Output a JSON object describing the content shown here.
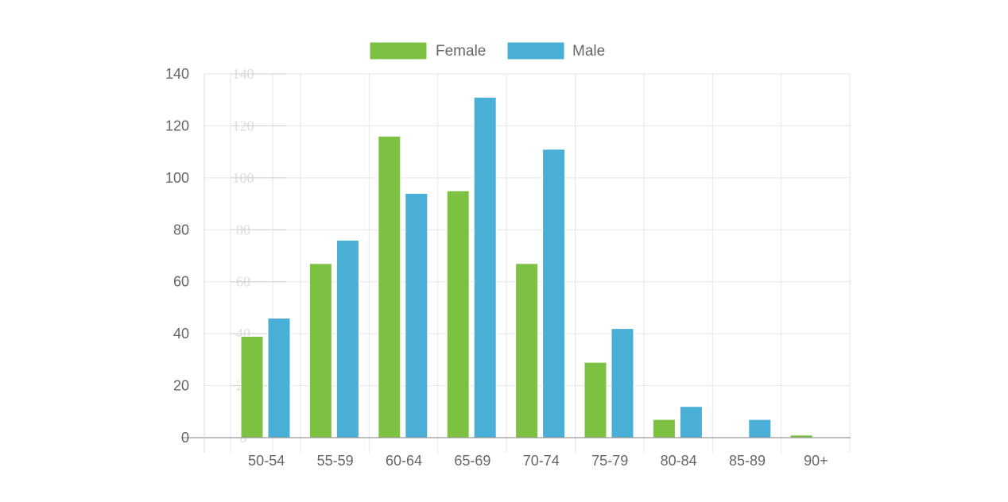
{
  "chart_data": {
    "type": "bar",
    "categories": [
      "50-54",
      "55-59",
      "60-64",
      "65-69",
      "70-74",
      "75-79",
      "80-84",
      "85-89",
      "90+"
    ],
    "series": [
      {
        "name": "Female",
        "color": "#7dc143",
        "values": [
          39,
          67,
          116,
          95,
          67,
          29,
          7,
          0,
          1
        ]
      },
      {
        "name": "Male",
        "color": "#4aafd6",
        "values": [
          46,
          76,
          94,
          131,
          111,
          42,
          12,
          7,
          0
        ]
      }
    ],
    "yticks": [
      0,
      20,
      40,
      60,
      80,
      100,
      120,
      140
    ],
    "ylim": [
      0,
      140
    ],
    "grid": true,
    "legend_position": "top-center"
  }
}
